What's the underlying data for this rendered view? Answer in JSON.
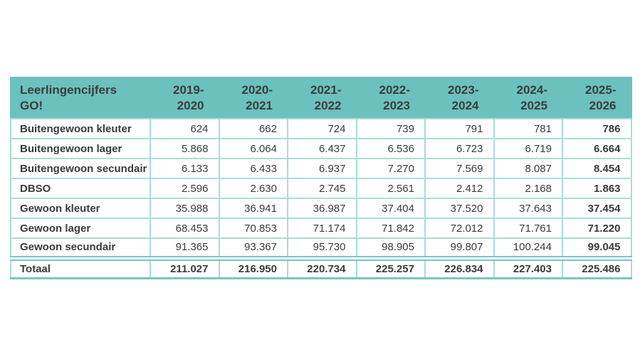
{
  "colors": {
    "header_bg": "#6bc1bd",
    "grid_line": "#abdcd9",
    "strong_line": "#79c6c2",
    "text": "#3b3b3b",
    "page_bg": "#ffffff"
  },
  "table": {
    "title": "Leerlingencijfers GO!",
    "year_columns": [
      "2019-2020",
      "2020-2021",
      "2021-2022",
      "2022-2023",
      "2023-2024",
      "2024-2025",
      "2025-2026"
    ],
    "rows": [
      {
        "label": "Buitengewoon kleuter",
        "values": [
          "624",
          "662",
          "724",
          "739",
          "791",
          "781",
          "786"
        ]
      },
      {
        "label": "Buitengewoon lager",
        "values": [
          "5.868",
          "6.064",
          "6.437",
          "6.536",
          "6.723",
          "6.719",
          "6.664"
        ]
      },
      {
        "label": "Buitengewoon secundair",
        "values": [
          "6.133",
          "6.433",
          "6.937",
          "7.270",
          "7.569",
          "8.087",
          "8.454"
        ]
      },
      {
        "label": "DBSO",
        "values": [
          "2.596",
          "2.630",
          "2.745",
          "2.561",
          "2.412",
          "2.168",
          "1.863"
        ]
      },
      {
        "label": "Gewoon kleuter",
        "values": [
          "35.988",
          "36.941",
          "36.987",
          "37.404",
          "37.520",
          "37.643",
          "37.454"
        ]
      },
      {
        "label": "Gewoon lager",
        "values": [
          "68.453",
          "70.853",
          "71.174",
          "71.842",
          "72.012",
          "71.761",
          "71.220"
        ]
      },
      {
        "label": "Gewoon secundair",
        "values": [
          "91.365",
          "93.367",
          "95.730",
          "98.905",
          "99.807",
          "100.244",
          "99.045"
        ]
      }
    ],
    "total_row": {
      "label": "Totaal",
      "values": [
        "211.027",
        "216.950",
        "220.734",
        "225.257",
        "226.834",
        "227.403",
        "225.486"
      ]
    }
  }
}
